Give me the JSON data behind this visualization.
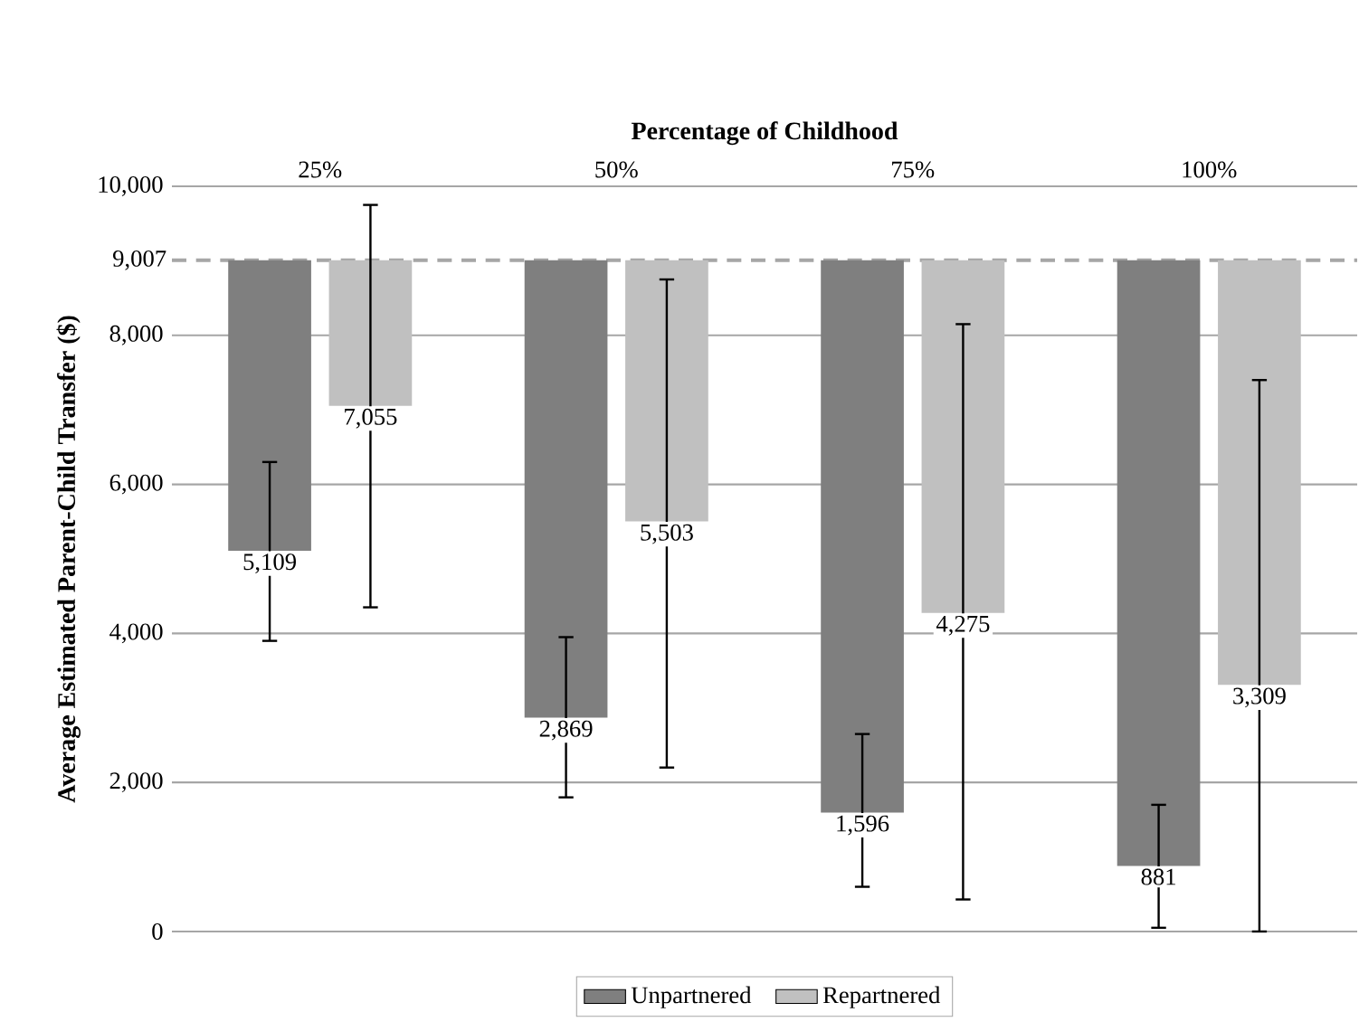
{
  "chart_data": {
    "type": "bar",
    "xlabel": "Percentage of Childhood",
    "ylabel": "Average Estimated Parent-Child Transfer ($)",
    "categories": [
      "25%",
      "50%",
      "75%",
      "100%"
    ],
    "series": [
      {
        "name": "Unpartnered",
        "color": "#7f7f7f",
        "base": [
          9007,
          9007,
          9007,
          9007
        ],
        "values": [
          -3898,
          -6138,
          -7411,
          -8126
        ],
        "value_labels": [
          "5,109",
          "2,869",
          "1,596",
          "881"
        ],
        "errors": [
          [
            3900,
            6300
          ],
          [
            1800,
            3950
          ],
          [
            600,
            2650
          ],
          [
            50,
            1700
          ]
        ]
      },
      {
        "name": "Repartnered",
        "color": "#c0c0c0",
        "base": [
          9007,
          9007,
          9007,
          9007
        ],
        "values": [
          -1952,
          -3504,
          -4732,
          -5698
        ],
        "value_labels": [
          "7,055",
          "5,503",
          "4,275",
          "3,309"
        ],
        "errors": [
          [
            4350,
            9750
          ],
          [
            2200,
            8750
          ],
          [
            430,
            8150
          ],
          [
            0,
            7400
          ]
        ]
      }
    ],
    "ylim": [
      0,
      10000
    ],
    "yticks": [
      {
        "value": 0,
        "label": "0"
      },
      {
        "value": 2000,
        "label": "2,000"
      },
      {
        "value": 4000,
        "label": "4,000"
      },
      {
        "value": 6000,
        "label": "6,000"
      },
      {
        "value": 8000,
        "label": "8,000"
      },
      {
        "value": 10000,
        "label": "10,000"
      }
    ],
    "ref_lines": [
      {
        "axis": "y",
        "value": 9007,
        "label": "9,007",
        "color": "#a6a6a6",
        "line_style": "dashed"
      }
    ],
    "grid": "y",
    "legend": "bottom"
  }
}
